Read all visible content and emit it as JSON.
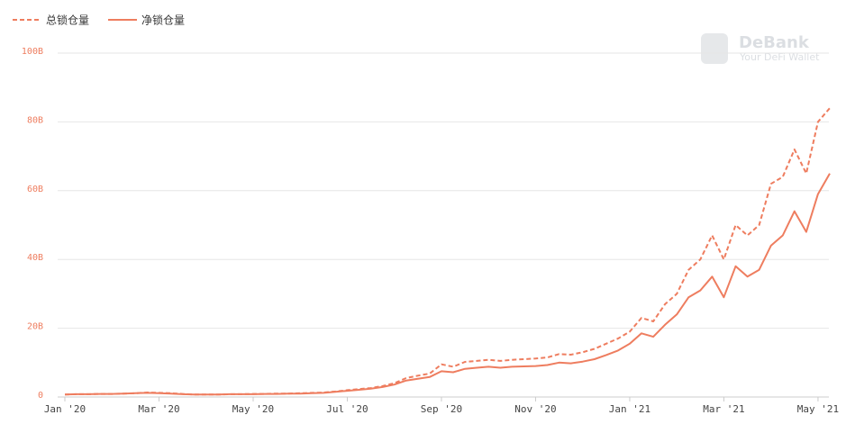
{
  "chart_data": {
    "type": "line",
    "categories": [
      "Jan '20",
      null,
      null,
      null,
      null,
      null,
      null,
      null,
      "Mar '20",
      null,
      null,
      null,
      null,
      null,
      null,
      null,
      "May '20",
      null,
      null,
      null,
      null,
      null,
      null,
      null,
      "Jul '20",
      null,
      null,
      null,
      null,
      null,
      null,
      null,
      "Sep '20",
      null,
      null,
      null,
      null,
      null,
      null,
      null,
      "Nov '20",
      null,
      null,
      null,
      null,
      null,
      null,
      null,
      "Jan '21",
      null,
      null,
      null,
      null,
      null,
      null,
      null,
      "Mar '21",
      null,
      null,
      null,
      null,
      null,
      null,
      null,
      "May '21",
      null
    ],
    "series": [
      {
        "name": "总锁仓量",
        "color": "#ee7d5f",
        "style": "dashed",
        "values": [
          0.7,
          0.8,
          0.8,
          0.9,
          0.9,
          1.0,
          1.1,
          1.3,
          1.2,
          1.1,
          0.9,
          0.7,
          0.7,
          0.7,
          0.8,
          0.8,
          0.9,
          0.9,
          1.0,
          1.0,
          1.1,
          1.2,
          1.3,
          1.6,
          2.0,
          2.3,
          2.6,
          3.2,
          4.0,
          5.5,
          6.2,
          6.8,
          9.5,
          8.8,
          10.2,
          10.5,
          10.8,
          10.5,
          10.8,
          11.0,
          11.2,
          11.5,
          12.5,
          12.3,
          13.0,
          14.0,
          15.5,
          17.0,
          19.0,
          23.0,
          22.0,
          27.0,
          30.0,
          37.0,
          40.0,
          47.0,
          40.0,
          50.0,
          47.0,
          50.0,
          62.0,
          64.0,
          72.0,
          65.0,
          80.0,
          84.0
        ]
      },
      {
        "name": "净锁仓量",
        "color": "#ee7d5f",
        "style": "solid",
        "values": [
          0.7,
          0.8,
          0.8,
          0.9,
          0.9,
          1.0,
          1.1,
          1.2,
          1.1,
          1.0,
          0.8,
          0.7,
          0.7,
          0.7,
          0.8,
          0.8,
          0.8,
          0.9,
          0.9,
          1.0,
          1.0,
          1.1,
          1.2,
          1.5,
          1.8,
          2.1,
          2.4,
          2.9,
          3.6,
          4.8,
          5.3,
          5.8,
          7.5,
          7.2,
          8.2,
          8.5,
          8.8,
          8.5,
          8.8,
          8.9,
          9.0,
          9.3,
          10.0,
          9.8,
          10.3,
          11.0,
          12.2,
          13.5,
          15.5,
          18.5,
          17.5,
          21.0,
          24.0,
          29.0,
          31.0,
          35.0,
          29.0,
          38.0,
          35.0,
          37.0,
          44.0,
          47.0,
          54.0,
          48.0,
          59.0,
          65.0
        ]
      }
    ],
    "ylim": [
      0,
      100
    ],
    "yticks": [
      0,
      {
        "value": 20,
        "label": "20B"
      },
      {
        "value": 40,
        "label": "40B"
      },
      {
        "value": 60,
        "label": "60B"
      },
      {
        "value": 80,
        "label": "80B"
      },
      {
        "value": 100,
        "label": "100B"
      }
    ],
    "grid": true,
    "legend": "top-left",
    "watermark": {
      "title": "DeBank",
      "subtitle": "Your DeFi Wallet"
    }
  }
}
